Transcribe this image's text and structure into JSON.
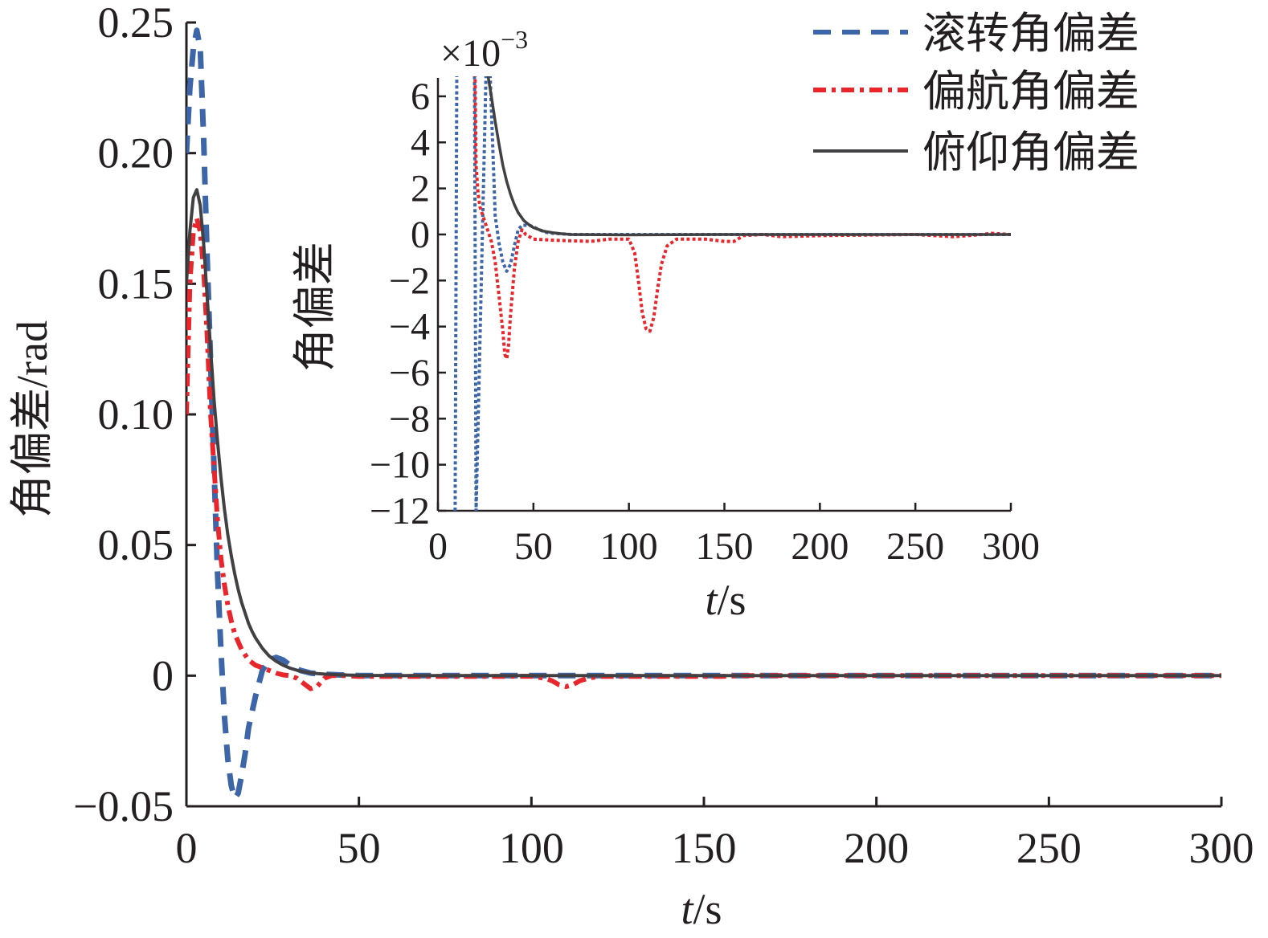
{
  "chart_data": [
    {
      "id": "main",
      "type": "line",
      "xlabel_italic": "t",
      "xlabel_unit": "/s",
      "ylabel": "角偏差/rad",
      "xlim": [
        0,
        300
      ],
      "ylim": [
        -0.05,
        0.25
      ],
      "xticks": [
        0,
        50,
        100,
        150,
        200,
        250,
        300
      ],
      "xtick_labels": [
        "0",
        "50",
        "100",
        "150",
        "200",
        "250",
        "300"
      ],
      "yticks": [
        -0.05,
        0,
        0.05,
        0.1,
        0.15,
        0.2,
        0.25
      ],
      "ytick_labels": [
        "−0.05",
        "0",
        "0.05",
        "0.10",
        "0.15",
        "0.20",
        "0.25"
      ],
      "grid": false,
      "legend_position": "top-right",
      "series": [
        {
          "name": "滚转角偏差",
          "color": "#3d66a8",
          "dash": "dashed",
          "points": [
            [
              0,
              0.2
            ],
            [
              1,
              0.225
            ],
            [
              2,
              0.24
            ],
            [
              3,
              0.247
            ],
            [
              4,
              0.24
            ],
            [
              5,
              0.205
            ],
            [
              6,
              0.16
            ],
            [
              7,
              0.12
            ],
            [
              8,
              0.08
            ],
            [
              9,
              0.04
            ],
            [
              10,
              0.01
            ],
            [
              11,
              -0.015
            ],
            [
              12,
              -0.032
            ],
            [
              13,
              -0.042
            ],
            [
              14,
              -0.047
            ],
            [
              15,
              -0.045
            ],
            [
              16,
              -0.038
            ],
            [
              17,
              -0.03
            ],
            [
              18,
              -0.02
            ],
            [
              20,
              -0.008
            ],
            [
              22,
              0.002
            ],
            [
              24,
              0.006
            ],
            [
              26,
              0.007
            ],
            [
              28,
              0.006
            ],
            [
              30,
              0.004
            ],
            [
              33,
              0.002
            ],
            [
              36,
              0.001
            ],
            [
              40,
              0.0005
            ],
            [
              50,
              0
            ],
            [
              100,
              0
            ],
            [
              110,
              0
            ],
            [
              150,
              0
            ],
            [
              200,
              0
            ],
            [
              250,
              0
            ],
            [
              300,
              0
            ]
          ]
        },
        {
          "name": "偏航角偏差",
          "color": "#e8262b",
          "dash": "dashdot",
          "points": [
            [
              0,
              0.1
            ],
            [
              1,
              0.15
            ],
            [
              2,
              0.17
            ],
            [
              3,
              0.175
            ],
            [
              4,
              0.17
            ],
            [
              5,
              0.155
            ],
            [
              6,
              0.13
            ],
            [
              7,
              0.1
            ],
            [
              8,
              0.08
            ],
            [
              9,
              0.06
            ],
            [
              10,
              0.045
            ],
            [
              11,
              0.035
            ],
            [
              12,
              0.027
            ],
            [
              13,
              0.021
            ],
            [
              14,
              0.016
            ],
            [
              16,
              0.01
            ],
            [
              18,
              0.006
            ],
            [
              20,
              0.004
            ],
            [
              22,
              0.003
            ],
            [
              24,
              0.002
            ],
            [
              26,
              0.001
            ],
            [
              28,
              0.0003
            ],
            [
              30,
              0
            ],
            [
              32,
              -0.001
            ],
            [
              34,
              -0.003
            ],
            [
              36,
              -0.005
            ],
            [
              38,
              -0.004
            ],
            [
              40,
              -0.001
            ],
            [
              42,
              0
            ],
            [
              46,
              0
            ],
            [
              50,
              -0.0003
            ],
            [
              70,
              -0.0003
            ],
            [
              90,
              -0.0003
            ],
            [
              100,
              -0.0002
            ],
            [
              104,
              -0.001
            ],
            [
              106,
              -0.002
            ],
            [
              108,
              -0.0035
            ],
            [
              110,
              -0.0042
            ],
            [
              112,
              -0.0035
            ],
            [
              114,
              -0.002
            ],
            [
              117,
              -0.0008
            ],
            [
              120,
              -0.0003
            ],
            [
              140,
              -0.0003
            ],
            [
              155,
              -0.0003
            ],
            [
              160,
              0
            ],
            [
              200,
              0
            ],
            [
              250,
              0
            ],
            [
              300,
              0
            ]
          ]
        },
        {
          "name": "俯仰角偏差",
          "color": "#414042",
          "dash": "solid",
          "points": [
            [
              0,
              0.15
            ],
            [
              1,
              0.17
            ],
            [
              2,
              0.183
            ],
            [
              3,
              0.186
            ],
            [
              4,
              0.18
            ],
            [
              5,
              0.165
            ],
            [
              6,
              0.145
            ],
            [
              7,
              0.125
            ],
            [
              8,
              0.106
            ],
            [
              9,
              0.09
            ],
            [
              10,
              0.076
            ],
            [
              11,
              0.064
            ],
            [
              12,
              0.054
            ],
            [
              13,
              0.046
            ],
            [
              14,
              0.039
            ],
            [
              15,
              0.033
            ],
            [
              16,
              0.028
            ],
            [
              17,
              0.024
            ],
            [
              18,
              0.02
            ],
            [
              19,
              0.017
            ],
            [
              20,
              0.0145
            ],
            [
              22,
              0.0105
            ],
            [
              24,
              0.0075
            ],
            [
              26,
              0.0055
            ],
            [
              28,
              0.004
            ],
            [
              30,
              0.0029
            ],
            [
              32,
              0.0021
            ],
            [
              34,
              0.0015
            ],
            [
              36,
              0.0011
            ],
            [
              38,
              0.0008
            ],
            [
              40,
              0.0006
            ],
            [
              45,
              0.0003
            ],
            [
              50,
              0.0001
            ],
            [
              60,
              0
            ],
            [
              100,
              0
            ],
            [
              150,
              0
            ],
            [
              200,
              0
            ],
            [
              250,
              0
            ],
            [
              300,
              0
            ]
          ]
        }
      ]
    },
    {
      "id": "inset",
      "type": "line",
      "xlabel_italic": "t",
      "xlabel_unit": "/s",
      "ylabel": "角偏差",
      "y_multiplier": "×10",
      "y_multiplier_exponent": "−3",
      "xlim": [
        0,
        300
      ],
      "ylim": [
        -12,
        6.8
      ],
      "xticks": [
        0,
        50,
        100,
        150,
        200,
        250,
        300
      ],
      "xtick_labels": [
        "0",
        "50",
        "100",
        "150",
        "200",
        "250",
        "300"
      ],
      "yticks": [
        -12,
        -10,
        -8,
        -6,
        -4,
        -2,
        0,
        2,
        4,
        6
      ],
      "ytick_labels": [
        "−12",
        "−10",
        "−8",
        "−6",
        "−4",
        "−2",
        "0",
        "2",
        "4",
        "6"
      ],
      "grid": false,
      "series": [
        {
          "name": "滚转角偏差",
          "color": "#3d66a8",
          "dash": "dotted",
          "points": [
            [
              9,
              -12
            ],
            [
              10,
              10
            ],
            [
              19,
              10
            ],
            [
              20,
              -12
            ],
            [
              26,
              10
            ],
            [
              30,
              0.8
            ],
            [
              32,
              -0.4
            ],
            [
              34,
              -1.2
            ],
            [
              36,
              -1.6
            ],
            [
              38,
              -1.3
            ],
            [
              40,
              -0.5
            ],
            [
              42,
              0.2
            ],
            [
              44,
              0.4
            ],
            [
              48,
              0.4
            ],
            [
              52,
              0.25
            ],
            [
              56,
              0.1
            ],
            [
              60,
              0.05
            ],
            [
              70,
              0
            ],
            [
              100,
              0
            ],
            [
              150,
              0
            ],
            [
              200,
              0
            ],
            [
              250,
              0
            ],
            [
              300,
              0
            ]
          ]
        },
        {
          "name": "偏航角偏差",
          "color": "#e8262b",
          "dash": "dotted",
          "points": [
            [
              19,
              10
            ],
            [
              20,
              3
            ],
            [
              21,
              1.8
            ],
            [
              22,
              1.2
            ],
            [
              24,
              0.7
            ],
            [
              26,
              0.2
            ],
            [
              28,
              -0.3
            ],
            [
              30,
              -1.2
            ],
            [
              32,
              -2.7
            ],
            [
              34,
              -4.2
            ],
            [
              35,
              -5.2
            ],
            [
              36,
              -5.4
            ],
            [
              37,
              -4.8
            ],
            [
              38,
              -3.5
            ],
            [
              40,
              -1.5
            ],
            [
              42,
              -0.3
            ],
            [
              44,
              0.2
            ],
            [
              46,
              0
            ],
            [
              50,
              -0.2
            ],
            [
              60,
              -0.25
            ],
            [
              80,
              -0.3
            ],
            [
              90,
              -0.2
            ],
            [
              100,
              -0.2
            ],
            [
              103,
              -0.8
            ],
            [
              105,
              -2.0
            ],
            [
              107,
              -3.4
            ],
            [
              109,
              -4.1
            ],
            [
              111,
              -4.2
            ],
            [
              113,
              -3.6
            ],
            [
              115,
              -2.4
            ],
            [
              117,
              -1.3
            ],
            [
              120,
              -0.5
            ],
            [
              125,
              -0.2
            ],
            [
              140,
              -0.2
            ],
            [
              150,
              -0.3
            ],
            [
              155,
              -0.3
            ],
            [
              160,
              -0.05
            ],
            [
              170,
              0
            ],
            [
              180,
              -0.1
            ],
            [
              200,
              -0.05
            ],
            [
              250,
              0
            ],
            [
              270,
              -0.1
            ],
            [
              285,
              0
            ],
            [
              290,
              0.05
            ],
            [
              300,
              0
            ]
          ]
        },
        {
          "name": "俯仰角偏差",
          "color": "#414042",
          "dash": "solid",
          "points": [
            [
              26,
              7.0
            ],
            [
              28,
              6.0
            ],
            [
              30,
              4.9
            ],
            [
              32,
              3.9
            ],
            [
              34,
              3.0
            ],
            [
              36,
              2.3
            ],
            [
              38,
              1.75
            ],
            [
              40,
              1.3
            ],
            [
              42,
              0.95
            ],
            [
              45,
              0.6
            ],
            [
              48,
              0.4
            ],
            [
              50,
              0.3
            ],
            [
              55,
              0.15
            ],
            [
              60,
              0.08
            ],
            [
              65,
              0.03
            ],
            [
              70,
              0
            ],
            [
              100,
              -0.02
            ],
            [
              150,
              0
            ],
            [
              200,
              0
            ],
            [
              250,
              0
            ],
            [
              300,
              0
            ]
          ]
        }
      ]
    }
  ]
}
